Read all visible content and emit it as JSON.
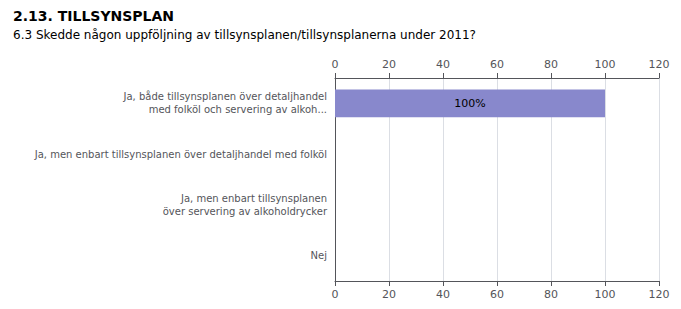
{
  "chart_data": {
    "type": "bar",
    "title": "2.13. TILLSYNSPLAN",
    "subtitle": "6.3 Skedde någon uppföljning av tillsynsplanen/tillsynsplanerna under 2011?",
    "orientation": "horizontal",
    "categories": [
      "Ja, både tillsynsplanen över detaljhandel\nmed folköl och servering av alkoh...",
      "Ja, men enbart tillsynsplanen över detaljhandel med folköl",
      "Ja, men enbart tillsynsplanen\növer servering av alkoholdrycker",
      "Nej"
    ],
    "values": [
      100,
      0,
      0,
      0
    ],
    "value_labels": [
      "100%",
      null,
      null,
      null
    ],
    "data_labels": true,
    "color": "#8888cc",
    "xlim": [
      0,
      120
    ],
    "xticks": [
      0,
      20,
      40,
      60,
      80,
      100,
      120
    ],
    "grid": true
  }
}
